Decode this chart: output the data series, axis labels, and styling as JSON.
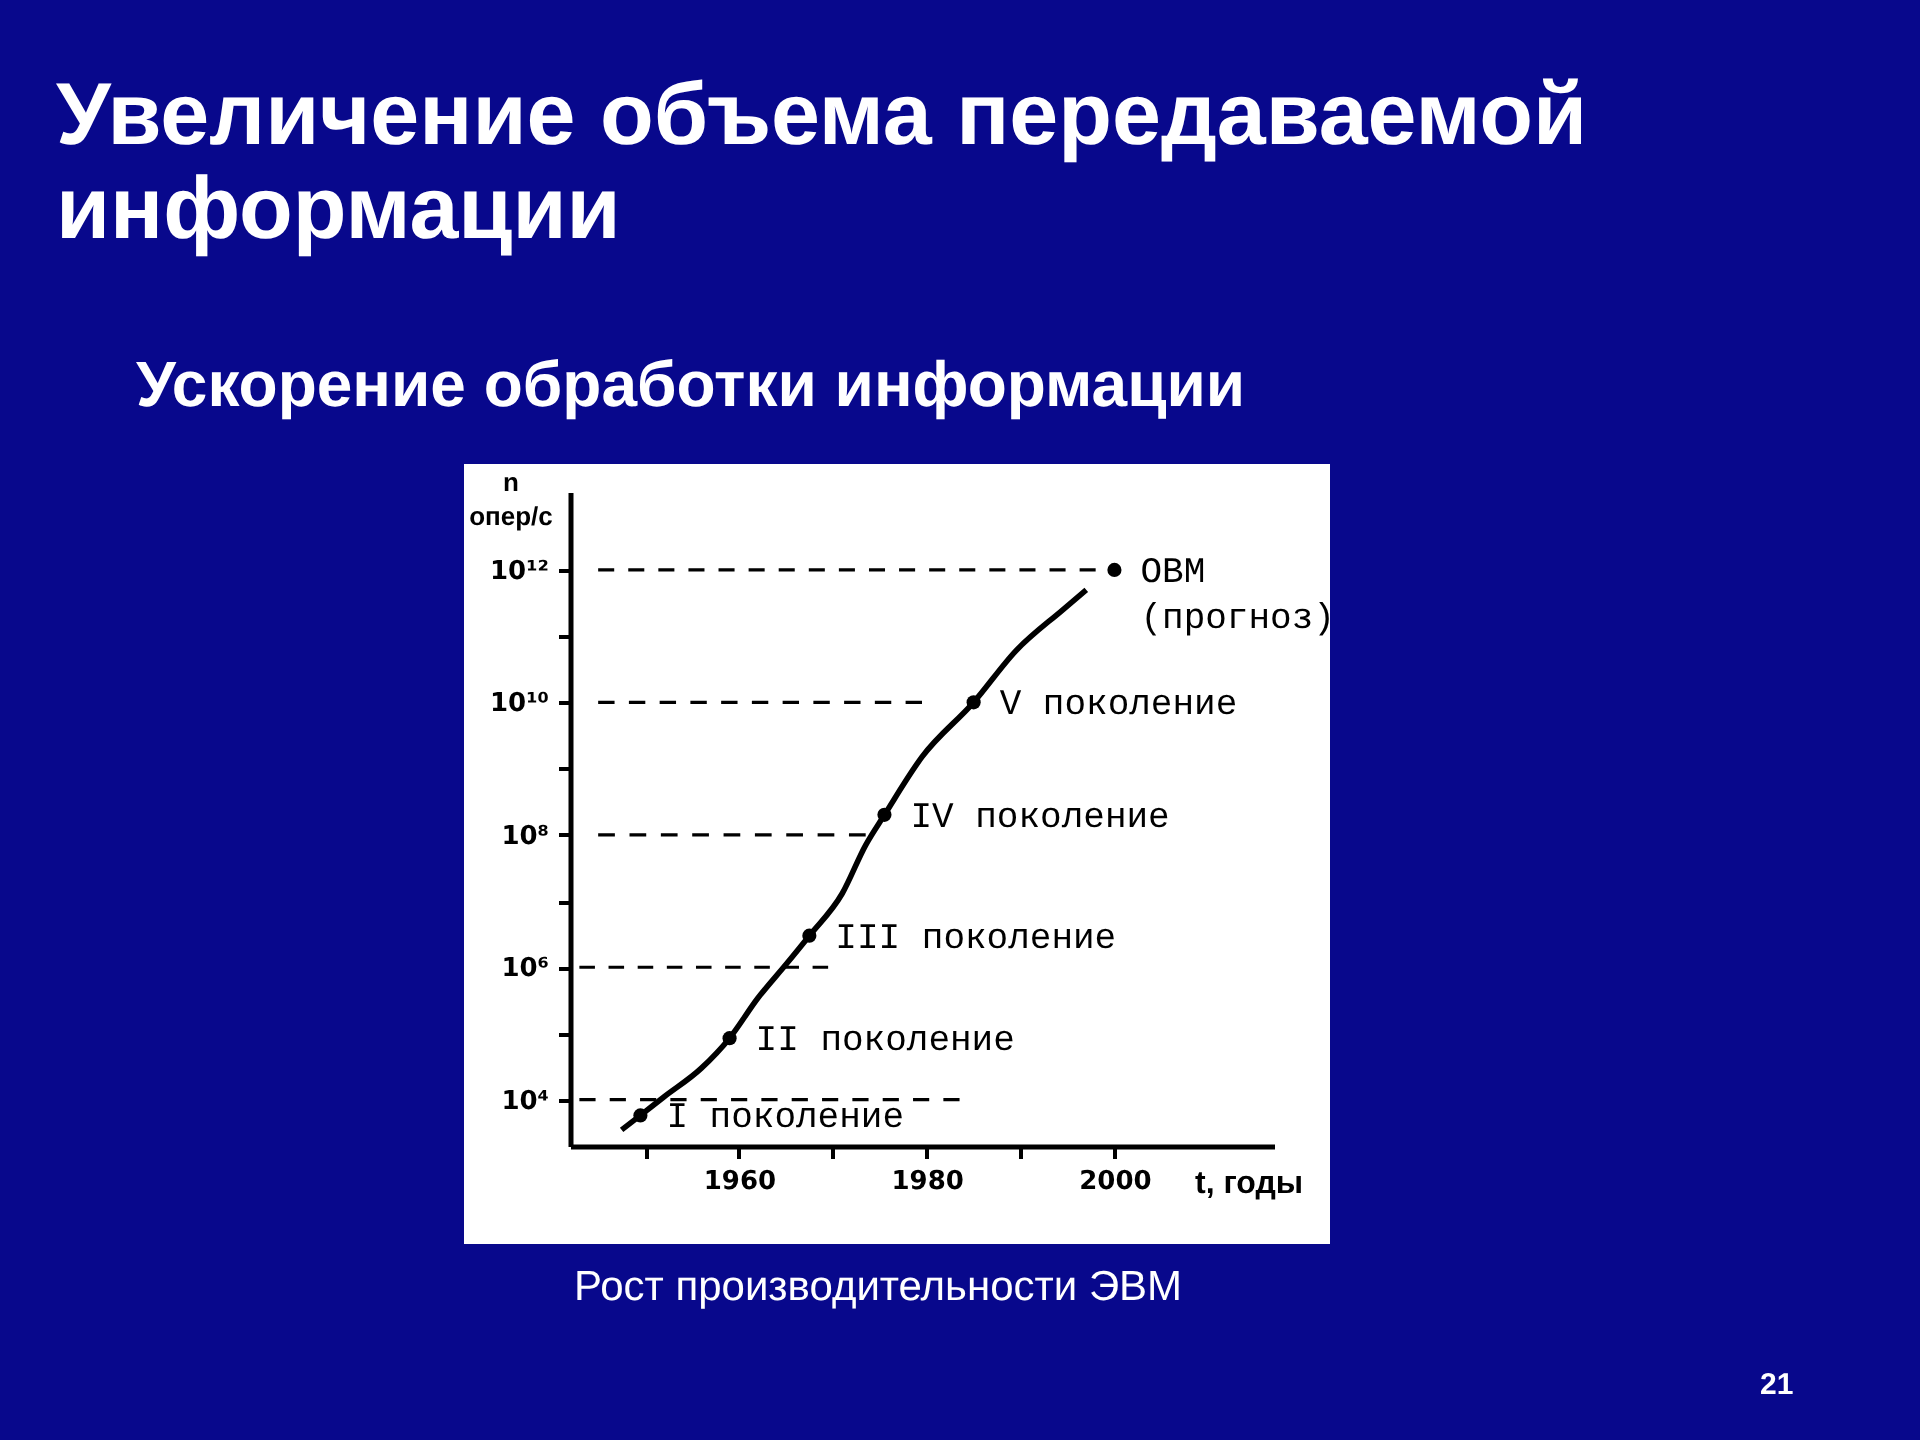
{
  "chart_data": {
    "type": "line",
    "title": "Увеличение объема передаваемой информации",
    "subtitle": "Ускорение обработки информации",
    "xlabel": "t, годы",
    "ylabel": "n\nопер/с",
    "log": "y",
    "xlim": [
      1942,
      2017
    ],
    "ylim": [
      2000,
      15000000000000
    ],
    "xticks": [
      {
        "value": 1950,
        "label": null
      },
      1960,
      {
        "value": 1970,
        "label": null
      },
      1980,
      {
        "value": 1990,
        "label": null
      },
      2000
    ],
    "yticks": [
      {
        "value": 10000,
        "label": "10⁴"
      },
      {
        "value": 100000,
        "label": null
      },
      {
        "value": 1000000,
        "label": "10⁶"
      },
      {
        "value": 10000000,
        "label": null
      },
      {
        "value": 100000000,
        "label": "10⁸"
      },
      {
        "value": 1000000000,
        "label": null
      },
      {
        "value": 10000000000,
        "label": "10¹⁰"
      },
      {
        "value": 100000000000,
        "label": null
      },
      {
        "value": 1000000000000,
        "label": "10¹²"
      }
    ],
    "series": [
      {
        "color": "#000000",
        "x": [
          1947.5,
          1949.5,
          1952,
          1956,
          1959,
          1962,
          1965,
          1967.5,
          1971,
          1973.5,
          1975.5,
          1979.5,
          1985,
          1989.5,
          1994.5,
          1997
        ],
        "values": [
          3500,
          5800,
          11000,
          30000,
          85000,
          340000,
          1100000,
          3000000,
          13000000,
          70000000,
          200000000,
          1500000000,
          10000000000,
          60000000000,
          250000000000,
          500000000000
        ]
      },
      {
        "type": "scatter",
        "marker": "circle",
        "color": "#000000",
        "x": [
          1949.5,
          1959,
          1967.5,
          1975.5,
          1985,
          2000
        ],
        "values": [
          5800,
          85000,
          3000000,
          200000000,
          10000000000,
          1000000000000
        ]
      },
      {
        "type": "line",
        "line_style": "dashed",
        "color": "#000000",
        "x": [
          1945,
          1998
        ],
        "values": [
          1000000000000,
          1000000000000
        ]
      },
      {
        "type": "line",
        "line_style": "dashed",
        "color": "#000000",
        "x": [
          1945,
          1979.5
        ],
        "values": [
          10000000000,
          10000000000
        ]
      },
      {
        "type": "line",
        "line_style": "dashed",
        "color": "#000000",
        "x": [
          1945,
          1973.5
        ],
        "values": [
          100000000,
          100000000
        ]
      },
      {
        "type": "line",
        "line_style": "dashed",
        "color": "#000000",
        "x": [
          1943,
          1969.5
        ],
        "values": [
          1000000,
          1000000
        ]
      },
      {
        "type": "line",
        "line_style": "dashed",
        "color": "#000000",
        "x": [
          1943,
          1983.5
        ],
        "values": [
          10000,
          10000
        ]
      }
    ],
    "annotations": [
      {
        "text": "I поколение",
        "x": 1949.5,
        "y": 5800
      },
      {
        "text": "II поколение",
        "x": 1959,
        "y": 85000
      },
      {
        "text": "III поколение",
        "x": 1967.5,
        "y": 3000000
      },
      {
        "text": "IV поколение",
        "x": 1975.5,
        "y": 200000000
      },
      {
        "text": "V поколение",
        "x": 1985,
        "y": 10000000000
      },
      {
        "text": "ОВМ\n(прогноз)",
        "x": 2000,
        "y": 1000000000000
      },
      "Рост производительности ЭВМ",
      "21"
    ]
  }
}
